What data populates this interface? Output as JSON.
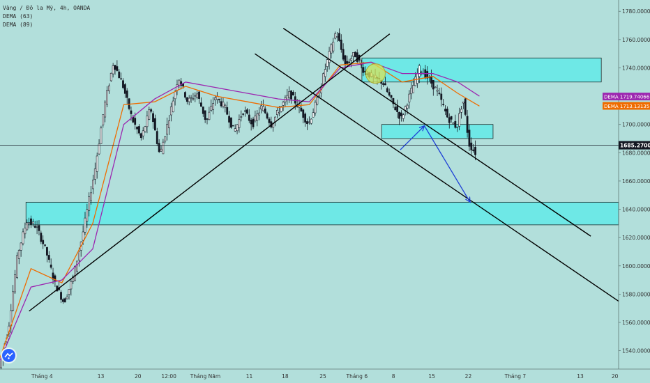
{
  "header": {
    "symbol_line": "Vàng / Đô la Mỹ, 4h, OANDA",
    "indicators": [
      "DEMA (63)",
      "DEMA (89)"
    ]
  },
  "badges": [
    {
      "tag": "DEMA",
      "value": "1719.74066",
      "color": "#9c27b0"
    },
    {
      "tag": "DEMA",
      "value": "1713.13135",
      "color": "#ef6c00"
    }
  ],
  "current_price": {
    "value": 1685.27,
    "label": "1685.27000",
    "color": "#131722"
  },
  "chart_data": {
    "type": "candlestick",
    "title": "Vàng / Đô la Mỹ, 4h, OANDA",
    "y_ticks": [
      1540,
      1560,
      1580,
      1600,
      1620,
      1640,
      1660,
      1680,
      1700,
      1720,
      1740,
      1760,
      1780
    ],
    "y_tick_labels": [
      "1540.00000",
      "1560.00000",
      "1580.00000",
      "1600.00000",
      "1620.00000",
      "1640.00000",
      "1660.00000",
      "1680.00000",
      "1700.00000",
      "1720.00000",
      "1740.00000",
      "1760.00000",
      "1780.00000"
    ],
    "ylim": [
      1527,
      1788
    ],
    "x_tick_labels": [
      "Tháng 4",
      "13",
      "20",
      "12:00",
      "Tháng Năm",
      "11",
      "18",
      "25",
      "Tháng 6",
      "8",
      "15",
      "22",
      "Tháng 7",
      "13",
      "20"
    ],
    "price_path": [
      [
        0,
        1528
      ],
      [
        0.015,
        1555
      ],
      [
        0.03,
        1608
      ],
      [
        0.045,
        1632
      ],
      [
        0.06,
        1628
      ],
      [
        0.075,
        1612
      ],
      [
        0.09,
        1588
      ],
      [
        0.105,
        1574
      ],
      [
        0.12,
        1592
      ],
      [
        0.135,
        1622
      ],
      [
        0.155,
        1668
      ],
      [
        0.17,
        1712
      ],
      [
        0.185,
        1744
      ],
      [
        0.2,
        1728
      ],
      [
        0.215,
        1704
      ],
      [
        0.23,
        1690
      ],
      [
        0.245,
        1712
      ],
      [
        0.26,
        1678
      ],
      [
        0.275,
        1705
      ],
      [
        0.29,
        1734
      ],
      [
        0.305,
        1716
      ],
      [
        0.32,
        1722
      ],
      [
        0.335,
        1702
      ],
      [
        0.35,
        1720
      ],
      [
        0.365,
        1712
      ],
      [
        0.38,
        1695
      ],
      [
        0.395,
        1710
      ],
      [
        0.41,
        1700
      ],
      [
        0.425,
        1713
      ],
      [
        0.44,
        1700
      ],
      [
        0.455,
        1712
      ],
      [
        0.47,
        1722
      ],
      [
        0.485,
        1712
      ],
      [
        0.5,
        1700
      ],
      [
        0.515,
        1718
      ],
      [
        0.53,
        1744
      ],
      [
        0.545,
        1766
      ],
      [
        0.56,
        1742
      ],
      [
        0.575,
        1750
      ],
      [
        0.59,
        1738
      ],
      [
        0.605,
        1733
      ],
      [
        0.62,
        1730
      ],
      [
        0.635,
        1716
      ],
      [
        0.65,
        1704
      ],
      [
        0.665,
        1722
      ],
      [
        0.68,
        1740
      ],
      [
        0.695,
        1732
      ],
      [
        0.71,
        1722
      ],
      [
        0.725,
        1705
      ],
      [
        0.74,
        1698
      ],
      [
        0.75,
        1718
      ],
      [
        0.76,
        1686
      ],
      [
        0.77,
        1680
      ]
    ],
    "series": [
      {
        "name": "DEMA (63)",
        "color": "#ef6c00",
        "points": [
          [
            0,
            1535
          ],
          [
            0.05,
            1598
          ],
          [
            0.1,
            1588
          ],
          [
            0.15,
            1630
          ],
          [
            0.2,
            1714
          ],
          [
            0.25,
            1716
          ],
          [
            0.3,
            1727
          ],
          [
            0.35,
            1720
          ],
          [
            0.4,
            1716
          ],
          [
            0.45,
            1712
          ],
          [
            0.5,
            1714
          ],
          [
            0.55,
            1742
          ],
          [
            0.6,
            1744
          ],
          [
            0.65,
            1730
          ],
          [
            0.7,
            1734
          ],
          [
            0.74,
            1722
          ],
          [
            0.775,
            1713
          ]
        ]
      },
      {
        "name": "DEMA (89)",
        "color": "#9c27b0",
        "points": [
          [
            0,
            1533
          ],
          [
            0.05,
            1585
          ],
          [
            0.1,
            1590
          ],
          [
            0.15,
            1612
          ],
          [
            0.2,
            1700
          ],
          [
            0.25,
            1718
          ],
          [
            0.3,
            1730
          ],
          [
            0.35,
            1726
          ],
          [
            0.4,
            1722
          ],
          [
            0.45,
            1718
          ],
          [
            0.5,
            1716
          ],
          [
            0.55,
            1740
          ],
          [
            0.6,
            1744
          ],
          [
            0.65,
            1736
          ],
          [
            0.7,
            1736
          ],
          [
            0.74,
            1730
          ],
          [
            0.775,
            1720
          ]
        ]
      }
    ],
    "zones": [
      {
        "x0": 0.042,
        "x1": 1.0,
        "y0": 1629,
        "y1": 1645
      },
      {
        "x0": 0.585,
        "x1": 0.972,
        "y0": 1730,
        "y1": 1747
      },
      {
        "x0": 0.617,
        "x1": 0.797,
        "y0": 1690,
        "y1": 1700
      }
    ],
    "trendlines": [
      {
        "x0": 0.047,
        "y0": 1568,
        "x1": 0.63,
        "y1": 1764
      },
      {
        "x0": 0.458,
        "y0": 1768,
        "x1": 0.955,
        "y1": 1621
      },
      {
        "x0": 0.412,
        "y0": 1750,
        "x1": 1.0,
        "y1": 1575
      }
    ],
    "projection_arrow": [
      [
        0.647,
        1682
      ],
      [
        0.686,
        1699
      ],
      [
        0.76,
        1645
      ]
    ],
    "highlight_circle": {
      "x": 0.607,
      "y": 1736
    }
  }
}
